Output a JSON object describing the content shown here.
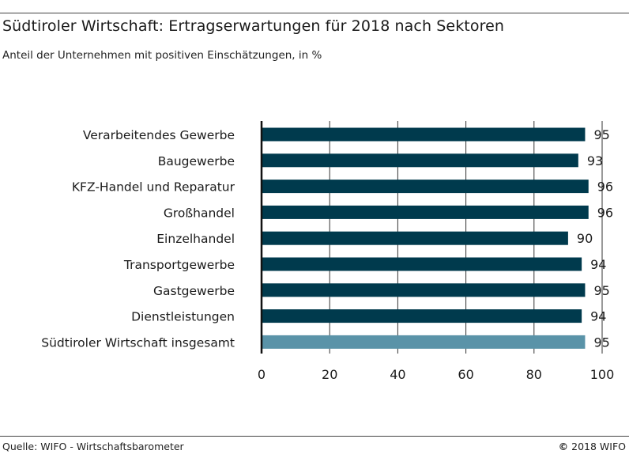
{
  "chart_data": {
    "type": "bar",
    "orientation": "horizontal",
    "title": "Südtiroler Wirtschaft: Ertragserwartungen für 2018 nach Sektoren",
    "subtitle": "Anteil der Unternehmen mit positiven Einschätzungen, in %",
    "categories": [
      "Verarbeitendes Gewerbe",
      "Baugewerbe",
      "KFZ-Handel und Reparatur",
      "Großhandel",
      "Einzelhandel",
      "Transportgewerbe",
      "Gastgewerbe",
      "Dienstleistungen",
      "Südtiroler Wirtschaft insgesamt"
    ],
    "values": [
      95,
      93,
      96,
      96,
      90,
      94,
      95,
      94,
      95
    ],
    "highlight_index": 8,
    "xlim": [
      0,
      100
    ],
    "xticks": [
      0,
      20,
      40,
      60,
      80,
      100
    ],
    "grid": true,
    "colors": {
      "bar": "#003a4d",
      "highlight": "#5a93a8",
      "grid": "#333333"
    }
  },
  "footer": {
    "source": "Quelle: WIFO - Wirtschaftsbarometer",
    "copyright_symbol": "©",
    "copyright_text": "2018 WIFO"
  }
}
